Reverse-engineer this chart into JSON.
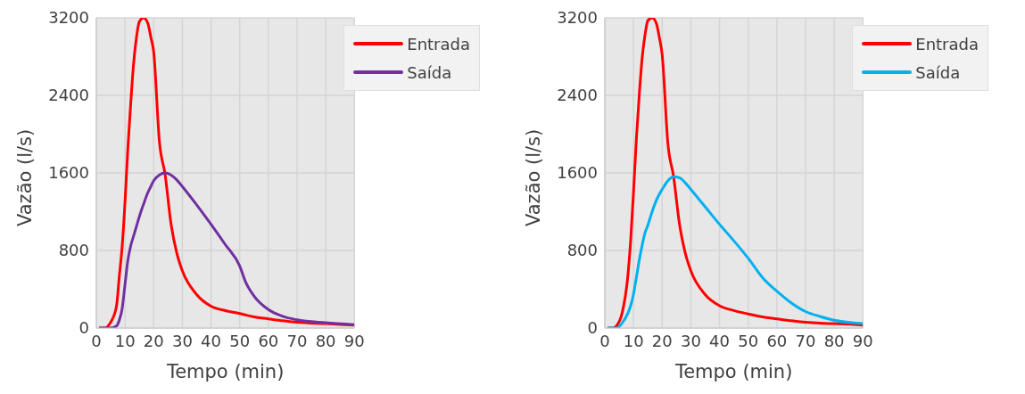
{
  "chart_data": [
    {
      "type": "line",
      "xlabel": "Tempo (min)",
      "ylabel": "Vazão (l/s)",
      "x": [
        1,
        3,
        5,
        7,
        8,
        9,
        10,
        11,
        12,
        13,
        14,
        15,
        16.5,
        18,
        19,
        20,
        22,
        24,
        26,
        28,
        30,
        35,
        40,
        45,
        50,
        52,
        55,
        60,
        65,
        70,
        80,
        90
      ],
      "series": [
        {
          "name": "Entrada",
          "color": "#ff0000",
          "values": [
            0,
            0,
            60,
            220,
            530,
            840,
            1300,
            1860,
            2320,
            2730,
            3000,
            3160,
            3200,
            3140,
            3000,
            2850,
            1920,
            1580,
            1085,
            780,
            590,
            345,
            225,
            180,
            150,
            135,
            115,
            95,
            75,
            60,
            45,
            30
          ]
        },
        {
          "name": "Saída",
          "color": "#7030a0",
          "values": [
            0,
            0,
            0,
            20,
            80,
            200,
            450,
            700,
            850,
            950,
            1050,
            1150,
            1280,
            1400,
            1460,
            1520,
            1580,
            1600,
            1580,
            1530,
            1460,
            1270,
            1070,
            860,
            640,
            480,
            330,
            190,
            120,
            85,
            55,
            35
          ]
        }
      ],
      "xlim": [
        0,
        90
      ],
      "xticks": [
        0,
        10,
        20,
        30,
        40,
        50,
        60,
        70,
        80,
        90
      ],
      "ylim": [
        0,
        3200
      ],
      "yticks": [
        0,
        800,
        1600,
        2400,
        3200
      ],
      "grid": true,
      "legend": "top right",
      "marker": "none",
      "line_style": "solid"
    },
    {
      "type": "line",
      "xlabel": "Tempo (min)",
      "ylabel": "Vazão (l/s)",
      "x": [
        1,
        3,
        4,
        6,
        8,
        9,
        10,
        11,
        12,
        13,
        14,
        15,
        16.5,
        18,
        19,
        20,
        22,
        24,
        26,
        28,
        30,
        35,
        40,
        45,
        50,
        55,
        60,
        65,
        70,
        75,
        80,
        90
      ],
      "series": [
        {
          "name": "Entrada",
          "color": "#ff0000",
          "values": [
            0,
            0,
            20,
            150,
            530,
            900,
            1400,
            1950,
            2400,
            2780,
            3020,
            3170,
            3200,
            3140,
            3000,
            2820,
            1900,
            1560,
            1080,
            780,
            590,
            345,
            230,
            180,
            145,
            115,
            95,
            75,
            60,
            50,
            45,
            30
          ]
        },
        {
          "name": "Saída",
          "color": "#00b0f0",
          "values": [
            0,
            0,
            0,
            50,
            150,
            230,
            350,
            520,
            700,
            850,
            980,
            1060,
            1200,
            1320,
            1380,
            1430,
            1520,
            1560,
            1550,
            1500,
            1430,
            1250,
            1070,
            900,
            720,
            520,
            380,
            260,
            170,
            120,
            80,
            45
          ]
        }
      ],
      "xlim": [
        0,
        90
      ],
      "xticks": [
        0,
        10,
        20,
        30,
        40,
        50,
        60,
        70,
        80,
        90
      ],
      "ylim": [
        0,
        3200
      ],
      "yticks": [
        0,
        800,
        1600,
        2400,
        3200
      ],
      "grid": true,
      "legend": "top right",
      "marker": "none",
      "line_style": "solid"
    }
  ]
}
